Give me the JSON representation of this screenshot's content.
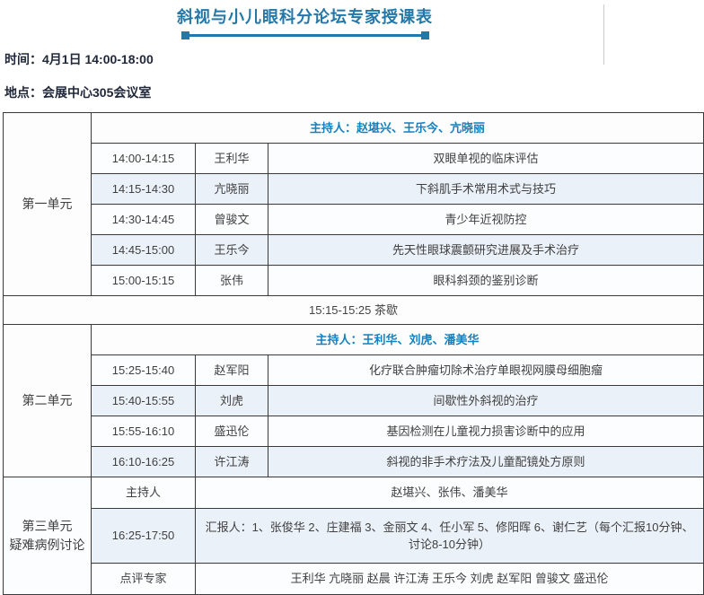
{
  "header": {
    "title": "斜视与小儿眼科分论坛专家授课表",
    "time": "时间：4月1日 14:00-18:00",
    "location": "地点：会展中心305会议室"
  },
  "colors": {
    "accent_teal": "#2478a8",
    "moderator_blue": "#1581bd",
    "header_text": "#20283a",
    "row_alt_blue": "#ebf1f9",
    "grid_border": "#3a3a3a"
  },
  "schedule": {
    "tea_break": "15:15-15:25 茶歇",
    "units": [
      {
        "label": "第一单元",
        "moderators": "主持人：赵堪兴、王乐今、亢晓丽",
        "sessions": [
          {
            "time": "14:00-14:15",
            "speaker": "王利华",
            "topic": "双眼单视的临床评估"
          },
          {
            "time": "14:15-14:30",
            "speaker": "亢晓丽",
            "topic": "下斜肌手术常用术式与技巧"
          },
          {
            "time": "14:30-14:45",
            "speaker": "曾骏文",
            "topic": "青少年近视防控"
          },
          {
            "time": "14:45-15:00",
            "speaker": "王乐今",
            "topic": "先天性眼球震颤研究进展及手术治疗"
          },
          {
            "time": "15:00-15:15",
            "speaker": "张伟",
            "topic": "眼科斜颈的鉴别诊断"
          }
        ]
      },
      {
        "label": "第二单元",
        "moderators": "主持人：王利华、刘虎、潘美华",
        "sessions": [
          {
            "time": "15:25-15:40",
            "speaker": "赵军阳",
            "topic": "化疗联合肿瘤切除术治疗单眼视网膜母细胞瘤"
          },
          {
            "time": "15:40-15:55",
            "speaker": "刘虎",
            "topic": "间歇性外斜视的治疗"
          },
          {
            "time": "15:55-16:10",
            "speaker": "盛迅伦",
            "topic": "基因检测在儿童视力损害诊断中的应用"
          },
          {
            "time": "16:10-16:25",
            "speaker": "许江涛",
            "topic": "斜视的非手术疗法及儿童配镜处方原则"
          }
        ]
      }
    ],
    "unit3": {
      "label_line1": "第三单元",
      "label_line2": "疑难病例讨论",
      "moderator_label": "主持人",
      "moderator_value": "赵堪兴、张伟、潘美华",
      "time": "16:25-17:50",
      "presenters": "汇报人：1、张俊华 2、庄建福 3、金丽文 4、任小军 5、修阳晖 6、谢仁艺（每个汇报10分钟、讨论8-10分钟）",
      "reviewer_label": "点评专家",
      "reviewer_value": "王利华 亢晓丽 赵晨 许江涛 王乐今 刘虎 赵军阳 曾骏文 盛迅伦"
    }
  }
}
